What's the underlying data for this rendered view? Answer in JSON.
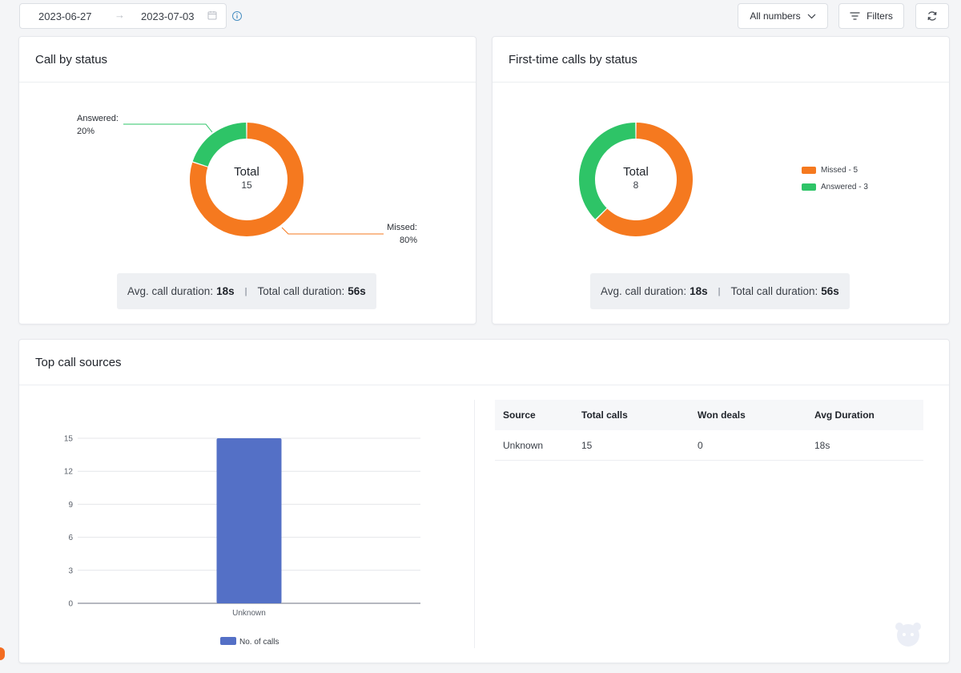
{
  "toolbar": {
    "start_date": "2023-06-27",
    "end_date": "2023-07-03",
    "numbers_label": "All numbers",
    "filters_label": "Filters"
  },
  "colors": {
    "missed": "#f5791f",
    "answered": "#2ec467",
    "bar": "#5470c6"
  },
  "call_by_status": {
    "title": "Call by status",
    "center_label": "Total",
    "center_value": "15",
    "answered_label": "Answered:",
    "answered_pct": "20%",
    "missed_label": "Missed:",
    "missed_pct": "80%",
    "avg_label": "Avg. call duration:",
    "avg_value": "18s",
    "total_label": "Total call duration:",
    "total_value": "56s"
  },
  "first_time_calls": {
    "title": "First-time calls by status",
    "center_label": "Total",
    "center_value": "8",
    "legend": [
      "Missed - 5",
      "Answered - 3"
    ],
    "avg_label": "Avg. call duration:",
    "avg_value": "18s",
    "total_label": "Total call duration:",
    "total_value": "56s"
  },
  "top_sources": {
    "title": "Top call sources",
    "legend_label": "No. of calls",
    "table": {
      "headers": [
        "Source",
        "Total calls",
        "Won deals",
        "Avg Duration"
      ],
      "rows": [
        [
          "Unknown",
          "15",
          "0",
          "18s"
        ]
      ]
    }
  },
  "chart_data": [
    {
      "type": "pie",
      "title": "Call by status",
      "labels": [
        "Missed",
        "Answered"
      ],
      "values": [
        12,
        3
      ],
      "percentages": [
        80,
        20
      ],
      "total": 15
    },
    {
      "type": "pie",
      "title": "First-time calls by status",
      "labels": [
        "Missed",
        "Answered"
      ],
      "values": [
        5,
        3
      ],
      "total": 8,
      "legend": "right"
    },
    {
      "type": "bar",
      "title": "Top call sources",
      "categories": [
        "Unknown"
      ],
      "series": [
        {
          "name": "No. of calls",
          "values": [
            15
          ]
        }
      ],
      "ylim": [
        0,
        15
      ],
      "yticks": [
        0,
        3,
        6,
        9,
        12,
        15
      ],
      "grid": true,
      "legend": "bottom"
    }
  ]
}
